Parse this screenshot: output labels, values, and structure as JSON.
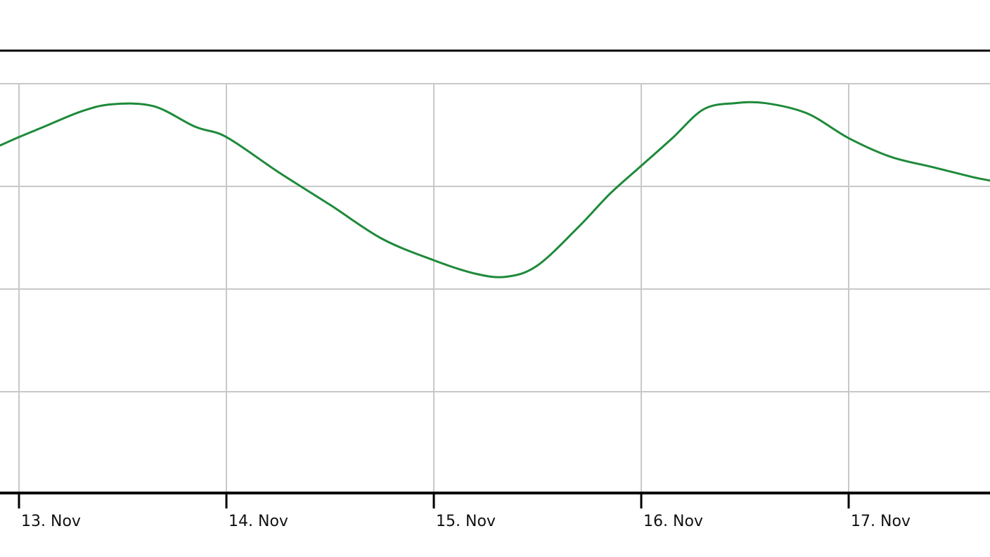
{
  "chart_data": {
    "type": "line",
    "x_tick_labels": [
      "13. Nov",
      "14. Nov",
      "15. Nov",
      "16. Nov",
      "17. Nov"
    ],
    "y_gridlines": 4,
    "grid": true,
    "legend": "none",
    "colors": {
      "series": "#1e8a3a",
      "grid": "#c8c8c8",
      "axis": "#000000"
    },
    "series": [
      {
        "points": [
          [
            -0.09,
            0.6
          ],
          [
            0.0,
            0.52
          ],
          [
            0.12,
            0.42
          ],
          [
            0.3,
            0.27
          ],
          [
            0.45,
            0.2
          ],
          [
            0.65,
            0.22
          ],
          [
            0.85,
            0.42
          ],
          [
            1.0,
            0.52
          ],
          [
            1.25,
            0.86
          ],
          [
            1.5,
            1.18
          ],
          [
            1.75,
            1.51
          ],
          [
            2.0,
            1.72
          ],
          [
            2.2,
            1.85
          ],
          [
            2.35,
            1.88
          ],
          [
            2.5,
            1.77
          ],
          [
            2.7,
            1.39
          ],
          [
            2.85,
            1.07
          ],
          [
            3.0,
            0.8
          ],
          [
            3.15,
            0.53
          ],
          [
            3.3,
            0.25
          ],
          [
            3.45,
            0.19
          ],
          [
            3.6,
            0.19
          ],
          [
            3.8,
            0.29
          ],
          [
            4.0,
            0.53
          ],
          [
            4.2,
            0.71
          ],
          [
            4.4,
            0.81
          ],
          [
            4.6,
            0.91
          ],
          [
            4.7,
            0.95
          ]
        ]
      }
    ]
  }
}
